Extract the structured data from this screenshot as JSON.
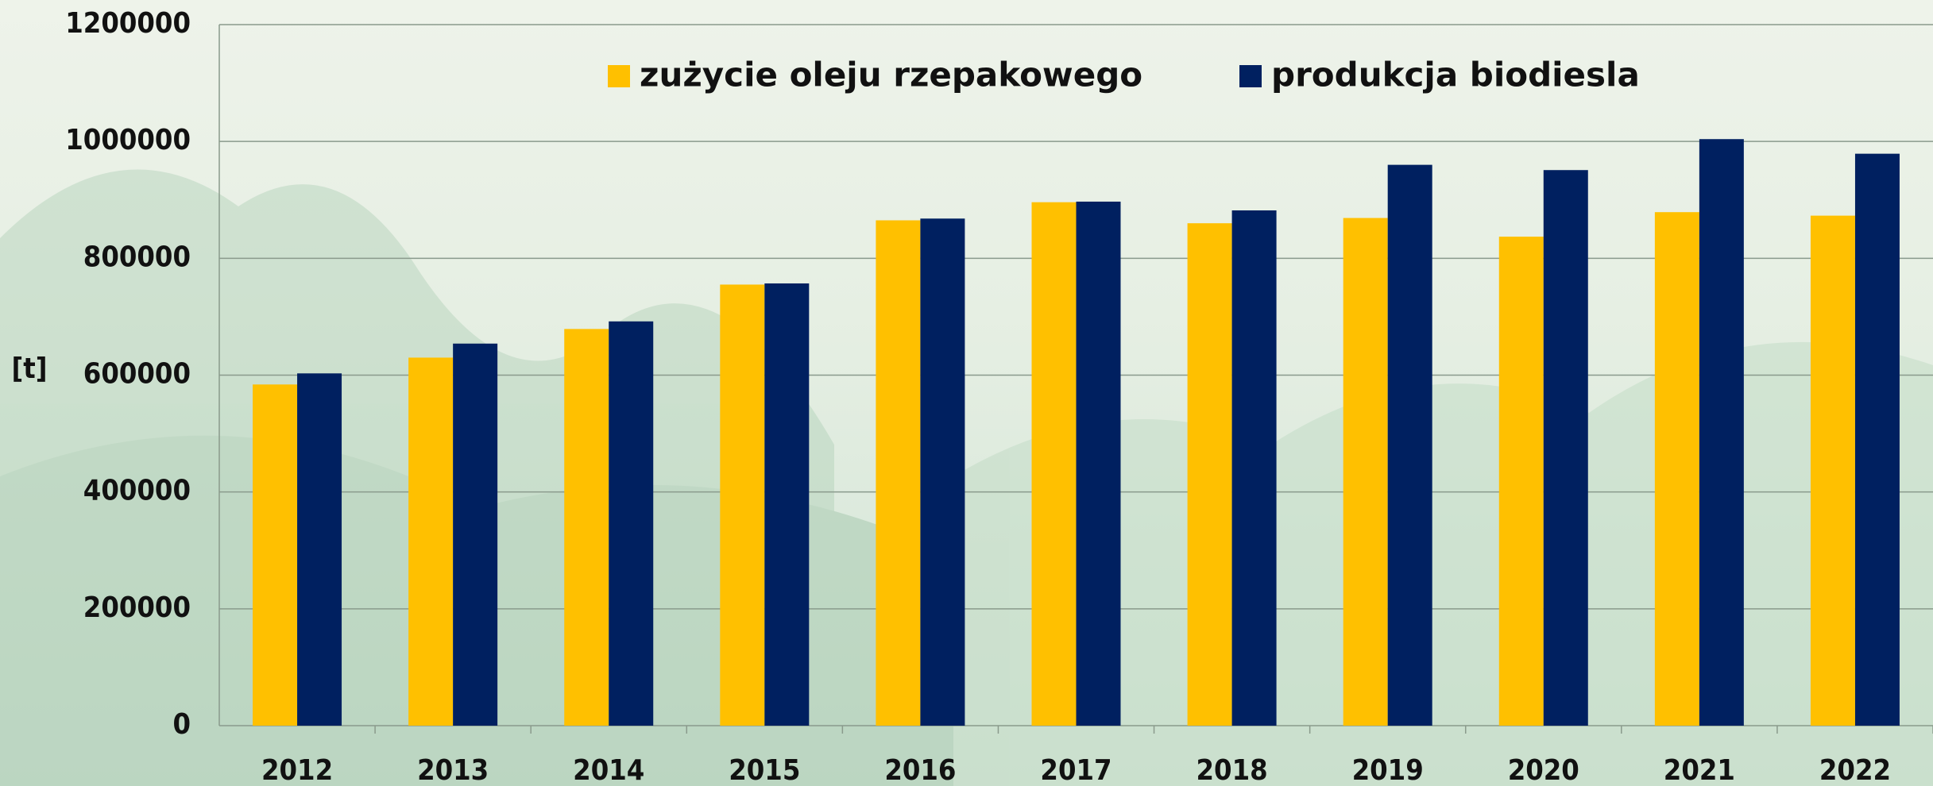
{
  "chart_data": {
    "type": "bar",
    "y_label": "[t]",
    "categories": [
      "2012",
      "2013",
      "2014",
      "2015",
      "2016",
      "2017",
      "2018",
      "2019",
      "2020",
      "2021",
      "2022"
    ],
    "series": [
      {
        "name": "zużycie oleju rzepakowego",
        "color": "#ffc000",
        "values": [
          584000,
          630000,
          679000,
          755000,
          865000,
          896000,
          860000,
          869000,
          837000,
          879000,
          873000
        ]
      },
      {
        "name": "produkcja biodiesla",
        "color": "#002060",
        "values": [
          603000,
          654000,
          692000,
          757000,
          868000,
          897000,
          882000,
          960000,
          951000,
          1004000,
          979000
        ]
      }
    ],
    "ylim": [
      0,
      1200000
    ],
    "yticks": [
      0,
      200000,
      400000,
      600000,
      800000,
      1000000,
      1200000
    ],
    "grid": true
  }
}
